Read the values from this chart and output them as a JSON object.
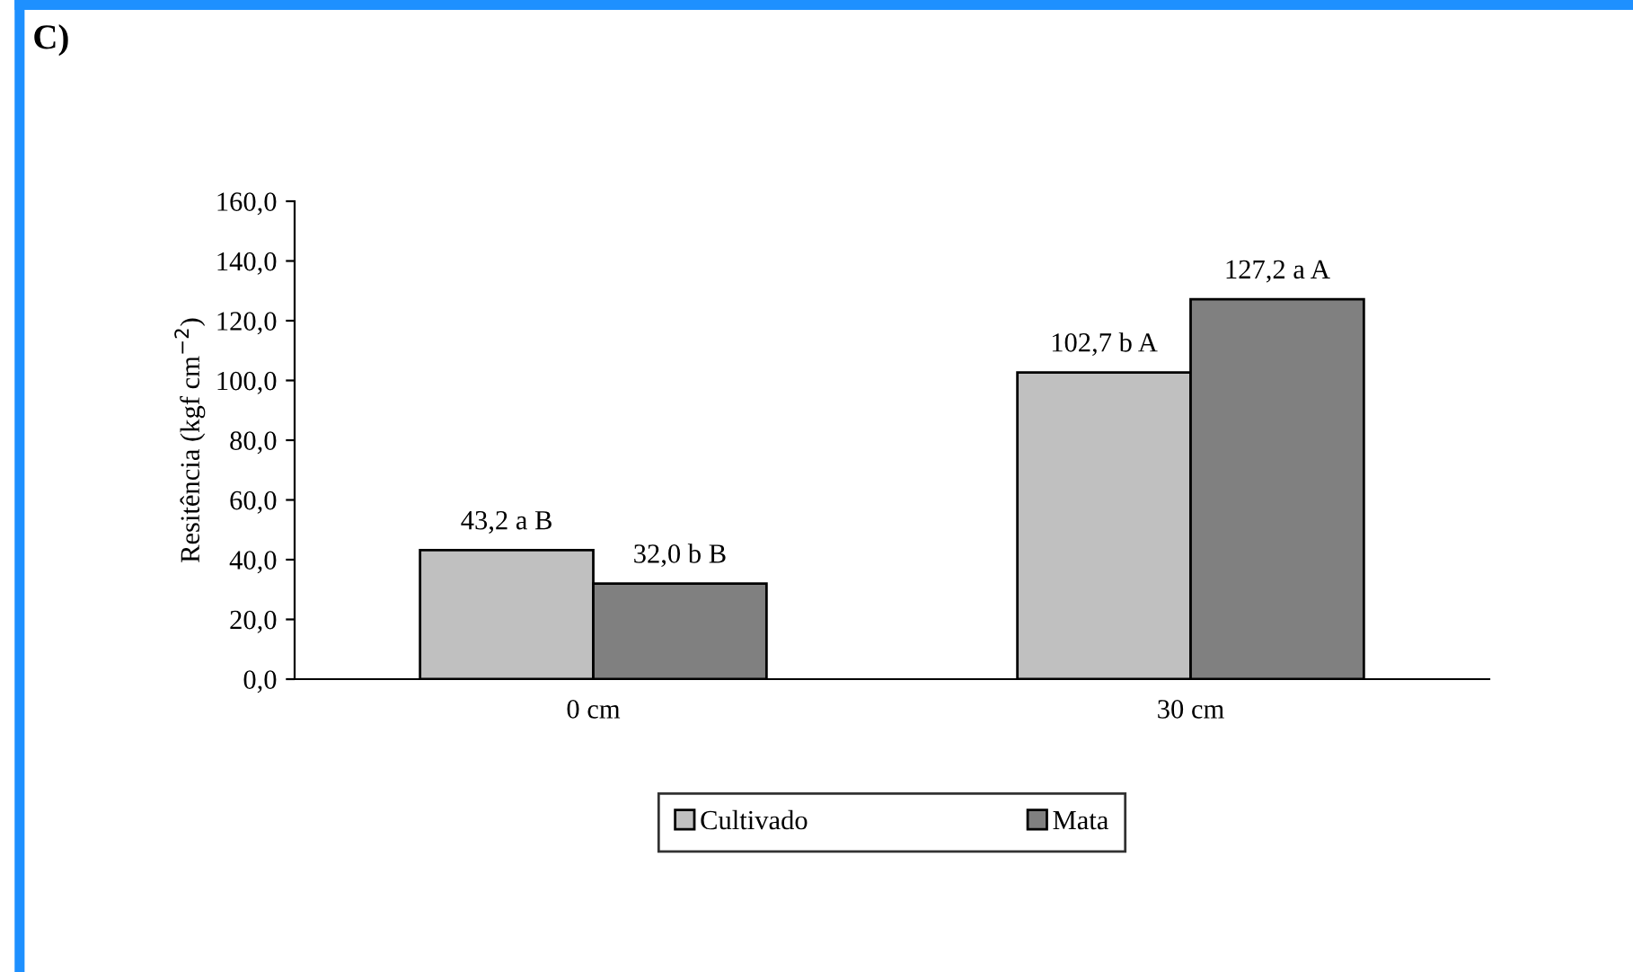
{
  "chart_data": {
    "type": "bar",
    "title": "C)",
    "ylabel": "Resitência (kgf cm$^{−2}$)",
    "categories": [
      "0 cm",
      "30 cm"
    ],
    "series": [
      {
        "name": "Cultivado",
        "color": "#c0c0c0",
        "values": [
          43.2,
          102.7
        ],
        "value_labels": [
          "43,2 a B",
          "102,7 b A"
        ]
      },
      {
        "name": "Mata",
        "color": "#808080",
        "values": [
          32.0,
          127.2
        ],
        "value_labels": [
          "32,0 b B",
          "127,2 a A"
        ]
      }
    ],
    "ylim": [
      0,
      160
    ],
    "yticks": [
      {
        "value": 0,
        "label": "0,0"
      },
      {
        "value": 20,
        "label": "20,0"
      },
      {
        "value": 40,
        "label": "40,0"
      },
      {
        "value": 60,
        "label": "60,0"
      },
      {
        "value": 80,
        "label": "80,0"
      },
      {
        "value": 100,
        "label": "100,0"
      },
      {
        "value": 120,
        "label": "120,0"
      },
      {
        "value": 140,
        "label": "140,0"
      },
      {
        "value": 160,
        "label": "160,0"
      }
    ],
    "grid": false,
    "legend": "bottom"
  }
}
